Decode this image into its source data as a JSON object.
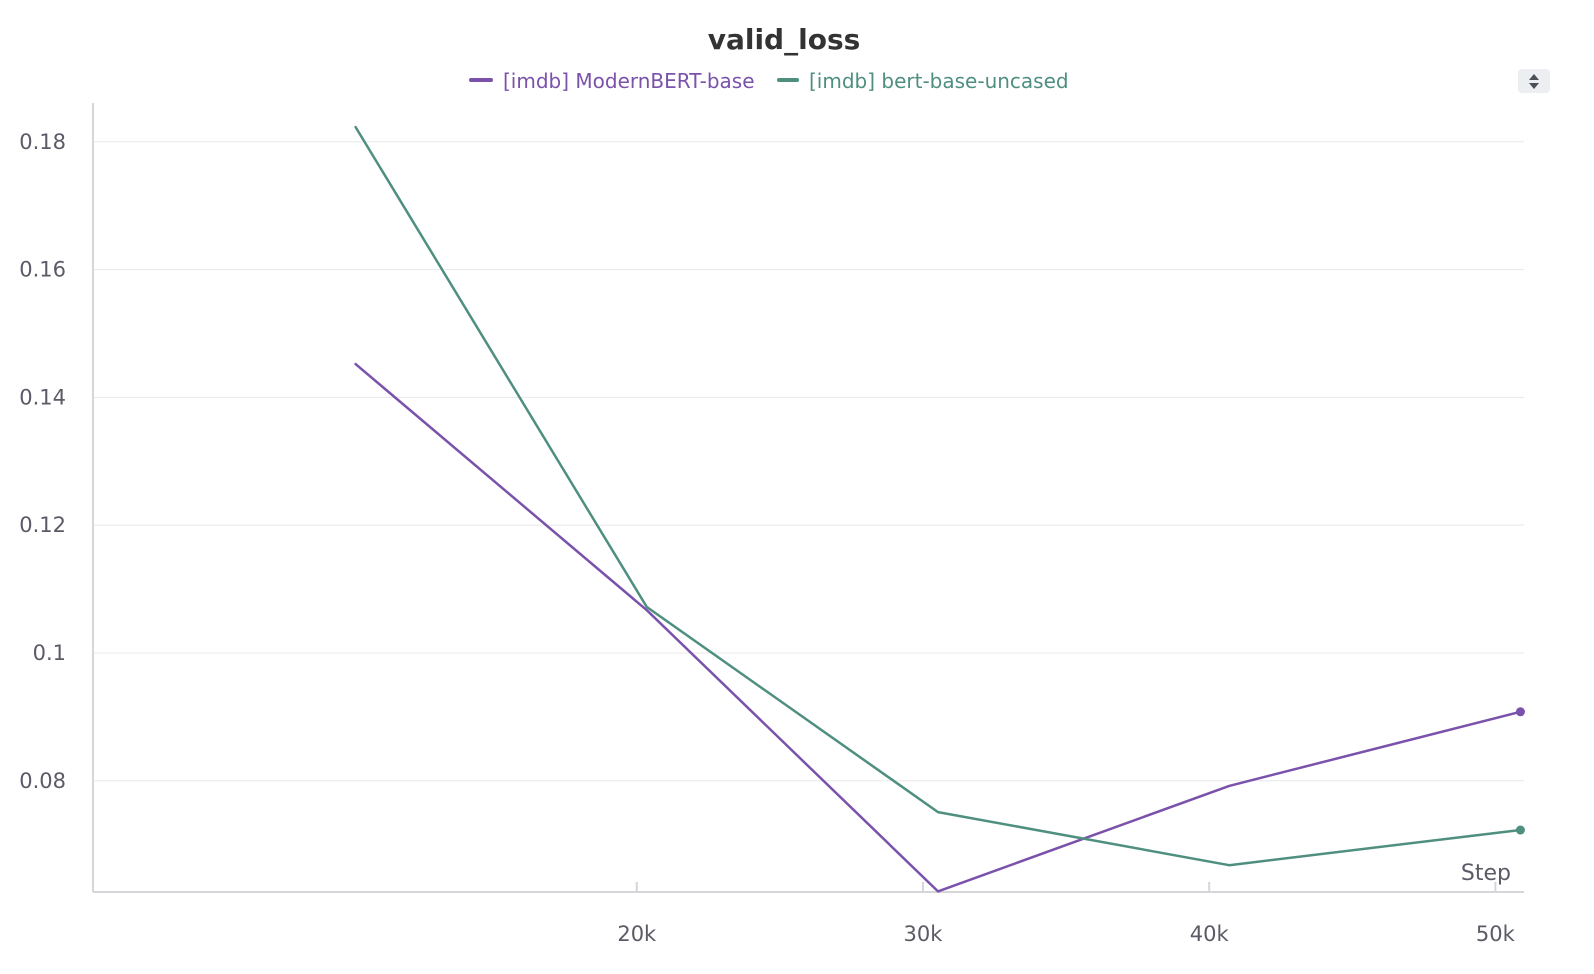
{
  "chart_data": {
    "type": "line",
    "title": "valid_loss",
    "xlabel": "Step",
    "ylabel": "",
    "xlim": [
      1000,
      51000
    ],
    "ylim": [
      0.0626,
      0.1845
    ],
    "x_ticks": [
      20000,
      30000,
      40000,
      50000
    ],
    "x_tick_labels": [
      "20k",
      "30k",
      "40k",
      "50k"
    ],
    "y_ticks": [
      0.08,
      0.1,
      0.12,
      0.14,
      0.16,
      0.18
    ],
    "y_tick_labels": [
      "0.08",
      "0.1",
      "0.12",
      "0.14",
      "0.16",
      "0.18"
    ],
    "grid": true,
    "legend_position": "top-center",
    "series": [
      {
        "name": "[imdb] ModernBERT-base",
        "color": "#7b52ab",
        "x": [
          10175,
          20350,
          30525,
          40700,
          50875
        ],
        "y": [
          0.1452,
          0.1067,
          0.0627,
          0.0792,
          0.0908
        ],
        "end_marker": true
      },
      {
        "name": "[imdb] bert-base-uncased",
        "color": "#4f8f80",
        "x": [
          10175,
          20350,
          30525,
          40700,
          50875
        ],
        "y": [
          0.1823,
          0.1072,
          0.0751,
          0.0668,
          0.0723
        ],
        "end_marker": true
      }
    ]
  }
}
